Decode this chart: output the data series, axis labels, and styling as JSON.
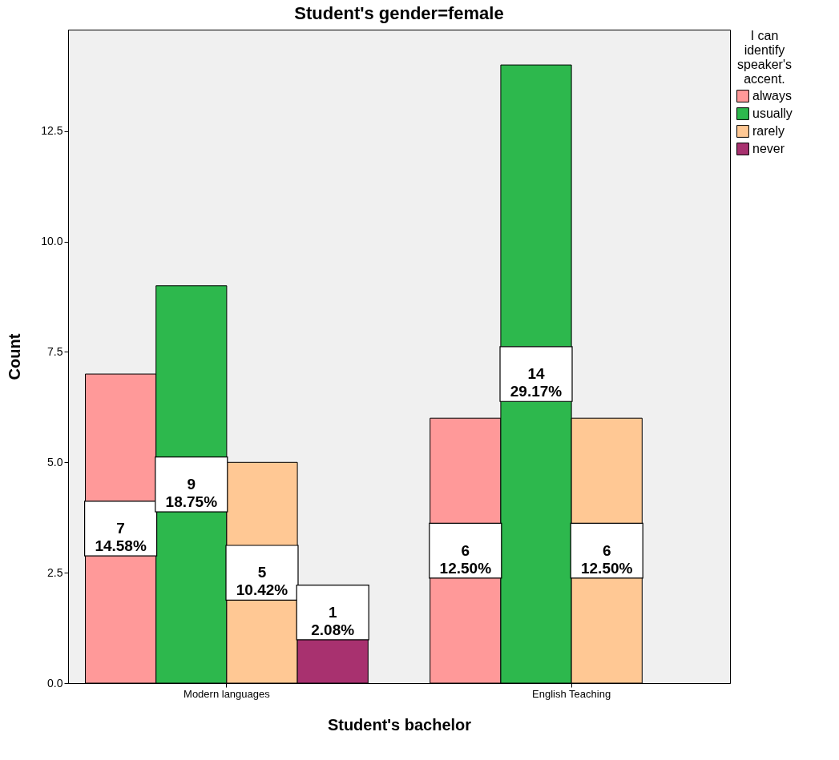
{
  "chart_data": {
    "type": "bar",
    "title": "Student's gender=female",
    "xlabel": "Student's bachelor",
    "ylabel": "Count",
    "legend_title": "I can identify speaker's accent.",
    "categories": [
      "Modern languages",
      "English Teaching"
    ],
    "series": [
      {
        "name": "always",
        "color": "#ff9999",
        "values": [
          7,
          6
        ],
        "value_labels": [
          "7\n14.58%",
          "6\n12.50%"
        ]
      },
      {
        "name": "usually",
        "color": "#2db84d",
        "values": [
          9,
          14
        ],
        "value_labels": [
          "9\n18.75%",
          "14\n29.17%"
        ]
      },
      {
        "name": "rarely",
        "color": "#ffc894",
        "values": [
          5,
          6
        ],
        "value_labels": [
          "5\n10.42%",
          "6\n12.50%"
        ]
      },
      {
        "name": "never",
        "color": "#a8316f",
        "values": [
          1,
          null
        ],
        "value_labels": [
          "1\n2.08%",
          null
        ]
      }
    ],
    "ylim": [
      0,
      14.8
    ],
    "yticks": [
      {
        "value": 0,
        "label": "0.0"
      },
      {
        "value": 2.5,
        "label": "2.5"
      },
      {
        "value": 5,
        "label": "5.0"
      },
      {
        "value": 7.5,
        "label": "7.5"
      },
      {
        "value": 10,
        "label": "10.0"
      },
      {
        "value": 12.5,
        "label": "12.5"
      }
    ],
    "grid": false,
    "legend": "top right"
  }
}
